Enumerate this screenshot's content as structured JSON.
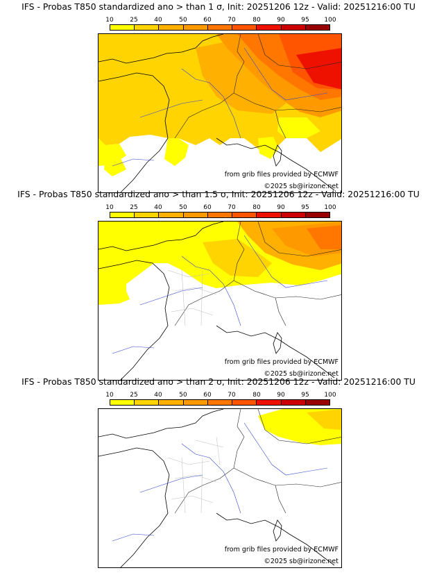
{
  "colorbar": {
    "ticks": [
      "10",
      "25",
      "40",
      "50",
      "60",
      "70",
      "80",
      "90",
      "95",
      "100"
    ],
    "colors": [
      "#ffff00",
      "#ffd400",
      "#ffb000",
      "#ff9900",
      "#ff7700",
      "#ff5500",
      "#ee1100",
      "#cc0000",
      "#990000",
      "#660000"
    ]
  },
  "panels": [
    {
      "title": "IFS - Probas T850  standardized ano > than 1 σ, Init: 20251206 12z - Valid: 20251216:00 TU",
      "credit_source": "from grib files provided by ECMWF",
      "credit_copyright": "©2025 sb@irizone.net"
    },
    {
      "title": "IFS - Probas T850  standardized ano > than 1.5 σ, Init: 20251206 12z - Valid: 20251216:00 TU",
      "credit_source": "from grib files provided by ECMWF",
      "credit_copyright": "©2025 sb@irizone.net"
    },
    {
      "title": "IFS - Probas T850  standardized ano > than 2 σ, Init: 20251206 12z - Valid: 20251216:00 TU",
      "credit_source": "from grib files provided by ECMWF",
      "credit_copyright": "©2025 sb@irizone.net"
    }
  ]
}
